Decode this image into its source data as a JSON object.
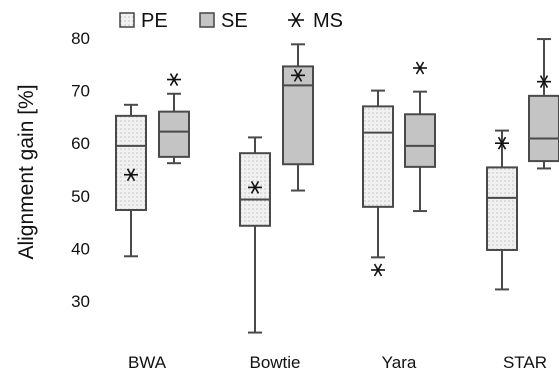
{
  "chart_data": {
    "type": "box",
    "ylabel": "Alignment gain [%]",
    "ylim": [
      22,
      84
    ],
    "yticks": [
      30,
      40,
      50,
      60,
      70,
      80
    ],
    "categories": [
      "BWA",
      "Bowtie",
      "Yara",
      "STAR"
    ],
    "legend": {
      "position": "top",
      "entries": [
        {
          "name": "PE",
          "kind": "box",
          "fill": "#f1f1f1",
          "dotted": true
        },
        {
          "name": "SE",
          "kind": "box",
          "fill": "#c4c4c4",
          "dotted": false
        },
        {
          "name": "MS",
          "kind": "marker",
          "marker": "asterisk"
        }
      ]
    },
    "series": [
      {
        "name": "PE",
        "fill": "#f1f1f1",
        "boxes": [
          {
            "min": 38.5,
            "q1": 47.3,
            "median": 59.5,
            "q3": 65.2,
            "max": 67.3
          },
          {
            "min": 24.0,
            "q1": 44.3,
            "median": 49.3,
            "q3": 58.1,
            "max": 61.1
          },
          {
            "min": 38.3,
            "q1": 47.9,
            "median": 62.0,
            "q3": 67.0,
            "max": 70.0
          },
          {
            "min": 32.2,
            "q1": 39.7,
            "median": 49.6,
            "q3": 55.4,
            "max": 62.4
          }
        ]
      },
      {
        "name": "SE",
        "fill": "#c4c4c4",
        "boxes": [
          {
            "min": 56.2,
            "q1": 57.4,
            "median": 62.2,
            "q3": 66.0,
            "max": 69.4
          },
          {
            "min": 51.0,
            "q1": 56.0,
            "median": 71.0,
            "q3": 74.6,
            "max": 78.8
          },
          {
            "min": 47.1,
            "q1": 55.5,
            "median": 59.5,
            "q3": 65.5,
            "max": 69.8
          },
          {
            "min": 55.2,
            "q1": 56.6,
            "median": 60.9,
            "q3": 69.0,
            "max": 79.8
          }
        ]
      },
      {
        "name": "MS",
        "values": [
          54.0,
          51.6,
          35.9,
          60.0
        ],
        "values_right": [
          72.1,
          72.9,
          74.3,
          71.7
        ]
      }
    ],
    "grid": false
  }
}
